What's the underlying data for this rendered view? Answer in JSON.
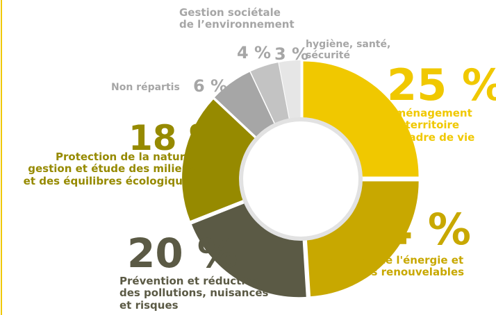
{
  "chart_data": {
    "type": "donut",
    "categories": [
      "Aménagement\ndu territoire\net cadre de vie",
      "Maîtrise de l'énergie et\nénergies renouvelables",
      "Prévention et réduction\ndes pollutions, nuisances\net risques",
      "Protection de la nature,\ngestion et étude des milieux\net des équilibres écologiques",
      "Non répartis",
      "Gestion sociétale\nde l’environnement",
      "hygiène, santé,\nsécurité"
    ],
    "values": [
      25,
      24,
      20,
      18,
      6,
      4,
      3
    ],
    "value_labels": [
      "25 %",
      "24 %",
      "20 %",
      "18 %",
      "6 %",
      "4 %",
      "3 %"
    ],
    "colors": [
      "#f0c800",
      "#c8a800",
      "#5b5a45",
      "#968a00",
      "#a6a6a6",
      "#c3c3c3",
      "#e6e6e6"
    ]
  }
}
